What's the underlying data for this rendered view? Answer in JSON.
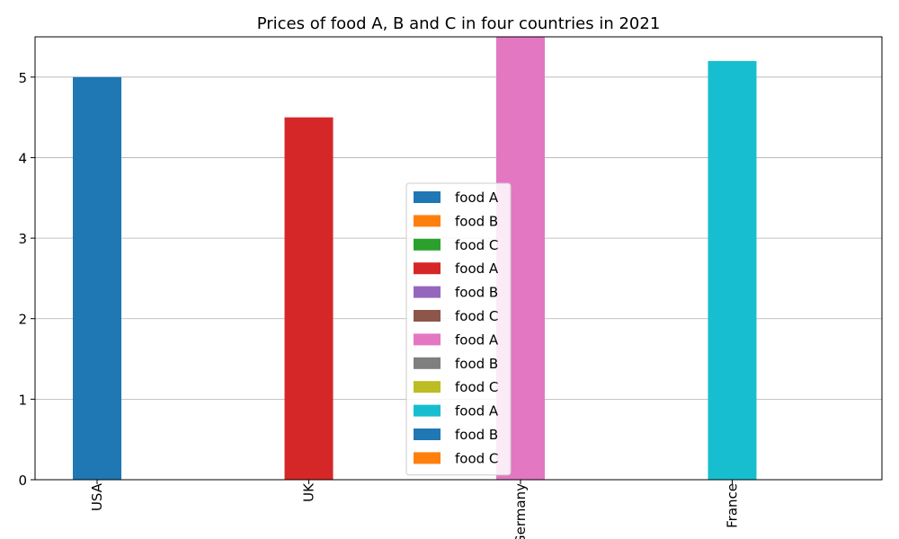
{
  "chart_data": {
    "type": "bar",
    "title": "Prices of food A, B and C in four countries in 2021",
    "xlabel": "",
    "ylabel": "",
    "categories": [
      "USA",
      "UK",
      "Germany",
      "France"
    ],
    "ylim": [
      0,
      5.5
    ],
    "yticks": [
      "0",
      "1",
      "2",
      "3",
      "4",
      "5"
    ],
    "grid": "y",
    "legend_position": "lower center",
    "series": [
      {
        "name": "food A",
        "values": [
          5.0,
          null,
          null,
          null
        ],
        "color": "#1f77b4"
      },
      {
        "name": "food B",
        "values": [
          null,
          null,
          null,
          null
        ],
        "color": "#ff7f0e"
      },
      {
        "name": "food C",
        "values": [
          null,
          null,
          null,
          null
        ],
        "color": "#2ca02c"
      },
      {
        "name": "food A",
        "values": [
          null,
          4.5,
          null,
          null
        ],
        "color": "#d62728"
      },
      {
        "name": "food B",
        "values": [
          null,
          null,
          null,
          null
        ],
        "color": "#9467bd"
      },
      {
        "name": "food C",
        "values": [
          null,
          null,
          null,
          null
        ],
        "color": "#8c564b"
      },
      {
        "name": "food A",
        "values": [
          null,
          null,
          5.5,
          null
        ],
        "color": "#e377c2"
      },
      {
        "name": "food B",
        "values": [
          null,
          null,
          null,
          null
        ],
        "color": "#7f7f7f"
      },
      {
        "name": "food C",
        "values": [
          null,
          null,
          null,
          null
        ],
        "color": "#bcbd22"
      },
      {
        "name": "food A",
        "values": [
          null,
          null,
          null,
          5.2
        ],
        "color": "#17becf"
      },
      {
        "name": "food B",
        "values": [
          null,
          null,
          null,
          null
        ],
        "color": "#1f77b4"
      },
      {
        "name": "food C",
        "values": [
          null,
          null,
          null,
          null
        ],
        "color": "#ff7f0e"
      }
    ]
  }
}
